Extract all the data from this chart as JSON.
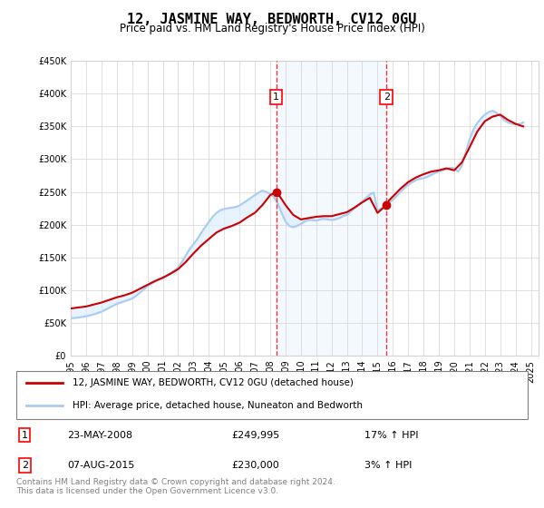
{
  "title": "12, JASMINE WAY, BEDWORTH, CV12 0GU",
  "subtitle": "Price paid vs. HM Land Registry's House Price Index (HPI)",
  "ylabel_min": 0,
  "ylabel_max": 450000,
  "ylabel_step": 50000,
  "x_start_year": 1995,
  "x_end_year": 2025,
  "sale1_date": 2008.39,
  "sale1_price": 249995,
  "sale1_label": "1",
  "sale1_display": "23-MAY-2008",
  "sale1_amount": "£249,995",
  "sale1_hpi": "17% ↑ HPI",
  "sale2_date": 2015.59,
  "sale2_price": 230000,
  "sale2_label": "2",
  "sale2_display": "07-AUG-2015",
  "sale2_amount": "£230,000",
  "sale2_hpi": "3% ↑ HPI",
  "line1_label": "12, JASMINE WAY, BEDWORTH, CV12 0GU (detached house)",
  "line2_label": "HPI: Average price, detached house, Nuneaton and Bedworth",
  "line1_color": "#cc0000",
  "line2_color": "#aaccee",
  "shade_color": "#ddeeff",
  "footer": "Contains HM Land Registry data © Crown copyright and database right 2024.\nThis data is licensed under the Open Government Licence v3.0.",
  "hpi_x": [
    1995.0,
    1995.25,
    1995.5,
    1995.75,
    1996.0,
    1996.25,
    1996.5,
    1996.75,
    1997.0,
    1997.25,
    1997.5,
    1997.75,
    1998.0,
    1998.25,
    1998.5,
    1998.75,
    1999.0,
    1999.25,
    1999.5,
    1999.75,
    2000.0,
    2000.25,
    2000.5,
    2000.75,
    2001.0,
    2001.25,
    2001.5,
    2001.75,
    2002.0,
    2002.25,
    2002.5,
    2002.75,
    2003.0,
    2003.25,
    2003.5,
    2003.75,
    2004.0,
    2004.25,
    2004.5,
    2004.75,
    2005.0,
    2005.25,
    2005.5,
    2005.75,
    2006.0,
    2006.25,
    2006.5,
    2006.75,
    2007.0,
    2007.25,
    2007.5,
    2007.75,
    2008.0,
    2008.25,
    2008.5,
    2008.75,
    2009.0,
    2009.25,
    2009.5,
    2009.75,
    2010.0,
    2010.25,
    2010.5,
    2010.75,
    2011.0,
    2011.25,
    2011.5,
    2011.75,
    2012.0,
    2012.25,
    2012.5,
    2012.75,
    2013.0,
    2013.25,
    2013.5,
    2013.75,
    2014.0,
    2014.25,
    2014.5,
    2014.75,
    2015.0,
    2015.25,
    2015.5,
    2015.75,
    2016.0,
    2016.25,
    2016.5,
    2016.75,
    2017.0,
    2017.25,
    2017.5,
    2017.75,
    2018.0,
    2018.25,
    2018.5,
    2018.75,
    2019.0,
    2019.25,
    2019.5,
    2019.75,
    2020.0,
    2020.25,
    2020.5,
    2020.75,
    2021.0,
    2021.25,
    2021.5,
    2021.75,
    2022.0,
    2022.25,
    2022.5,
    2022.75,
    2023.0,
    2023.25,
    2023.5,
    2023.75,
    2024.0,
    2024.25,
    2024.5
  ],
  "hpi_y": [
    57000,
    57500,
    58000,
    59000,
    60000,
    61500,
    63000,
    65000,
    67000,
    70000,
    73000,
    76000,
    79000,
    81000,
    83000,
    85000,
    87000,
    91000,
    96000,
    101000,
    106000,
    110000,
    113000,
    116000,
    118000,
    122000,
    126000,
    130000,
    135000,
    143000,
    153000,
    163000,
    170000,
    178000,
    187000,
    196000,
    204000,
    212000,
    218000,
    222000,
    224000,
    225000,
    226000,
    227000,
    229000,
    233000,
    237000,
    241000,
    245000,
    249000,
    252000,
    250000,
    247000,
    242000,
    232000,
    218000,
    205000,
    198000,
    196000,
    198000,
    201000,
    205000,
    207000,
    207000,
    206000,
    208000,
    209000,
    208000,
    207000,
    208000,
    210000,
    213000,
    215000,
    220000,
    225000,
    230000,
    235000,
    241000,
    246000,
    249000,
    222000,
    225000,
    228000,
    233000,
    238000,
    244000,
    250000,
    256000,
    261000,
    265000,
    268000,
    270000,
    271000,
    273000,
    276000,
    279000,
    281000,
    283000,
    285000,
    287000,
    286000,
    281000,
    290000,
    310000,
    330000,
    345000,
    355000,
    362000,
    368000,
    372000,
    374000,
    371000,
    366000,
    360000,
    356000,
    354000,
    353000,
    354000,
    356000
  ],
  "property_x": [
    1995.0,
    1995.5,
    1996.0,
    1996.5,
    1997.0,
    1997.5,
    1998.0,
    1998.5,
    1999.0,
    1999.5,
    2000.0,
    2000.5,
    2001.0,
    2001.5,
    2002.0,
    2002.5,
    2003.0,
    2003.5,
    2004.0,
    2004.5,
    2005.0,
    2005.5,
    2006.0,
    2006.5,
    2007.0,
    2007.5,
    2008.0,
    2008.39,
    2008.5,
    2009.0,
    2009.5,
    2010.0,
    2010.5,
    2011.0,
    2011.5,
    2012.0,
    2012.5,
    2013.0,
    2013.5,
    2014.0,
    2014.5,
    2015.0,
    2015.59,
    2015.75,
    2016.0,
    2016.5,
    2017.0,
    2017.5,
    2018.0,
    2018.5,
    2019.0,
    2019.5,
    2020.0,
    2020.5,
    2021.0,
    2021.5,
    2022.0,
    2022.5,
    2023.0,
    2023.5,
    2024.0,
    2024.5
  ],
  "property_y": [
    72000,
    73500,
    75000,
    78000,
    81000,
    85000,
    89000,
    92000,
    96000,
    102000,
    108000,
    114000,
    119000,
    125000,
    132000,
    143000,
    156000,
    168000,
    178000,
    188000,
    194000,
    198000,
    203000,
    211000,
    218000,
    230000,
    245000,
    249995,
    248000,
    230000,
    215000,
    208000,
    210000,
    212000,
    213000,
    213000,
    216000,
    219000,
    226000,
    234000,
    241000,
    218000,
    230000,
    237000,
    243000,
    255000,
    265000,
    272000,
    277000,
    281000,
    283000,
    286000,
    283000,
    295000,
    318000,
    342000,
    358000,
    365000,
    368000,
    360000,
    354000,
    350000
  ]
}
